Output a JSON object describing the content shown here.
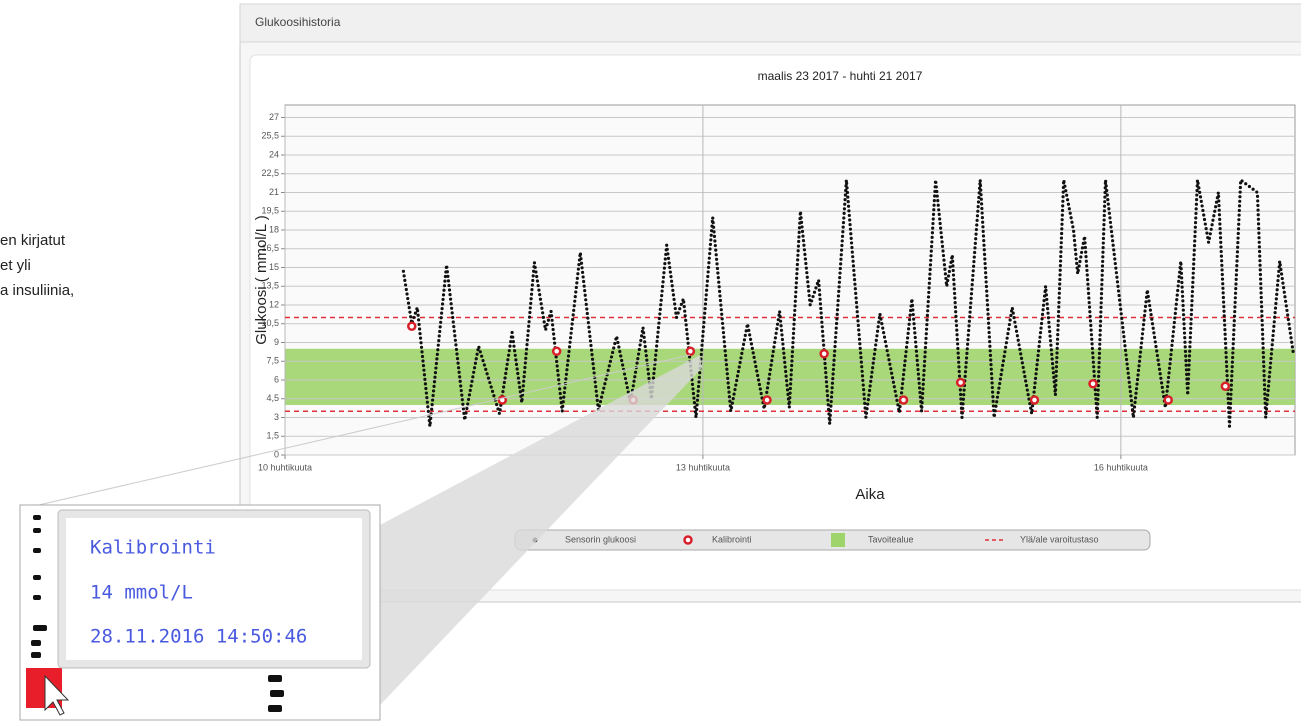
{
  "side_text": [
    "en kirjatut",
    "et yli",
    "a insuliinia,"
  ],
  "panel_title": "Glukoosihistoria",
  "chart_data": {
    "type": "scatter",
    "title": "maalis 23 2017 - huhti 21 2017",
    "x_label": "Aika",
    "y_label": "Glukoosi ( mmol/L )",
    "xlim": [
      10,
      17.25
    ],
    "xticks": [
      {
        "value": 10,
        "label": "10 huhtikuuta"
      },
      {
        "value": 13,
        "label": "13 huhtikuuta"
      },
      {
        "value": 16,
        "label": "16 huhtikuuta"
      }
    ],
    "ylim": [
      0,
      28
    ],
    "yticks": [
      0,
      {
        "value": 1.5,
        "label": "1,5"
      },
      3,
      {
        "value": 4.5,
        "label": "4,5"
      },
      6,
      {
        "value": 7.5,
        "label": "7,5"
      },
      9,
      {
        "value": 10.5,
        "label": "10,5"
      },
      12,
      {
        "value": 13.5,
        "label": "13,5"
      },
      15,
      {
        "value": 16.5,
        "label": "16,5"
      },
      18,
      {
        "value": 19.5,
        "label": "19,5"
      },
      21,
      {
        "value": 22.5,
        "label": "22,5"
      },
      24,
      {
        "value": 25.5,
        "label": "25,5"
      },
      27
    ],
    "grid": true,
    "legend": "bottom",
    "target_range": {
      "name": "Tavoitealue",
      "values": [
        4,
        8.5
      ],
      "color": "#9fd46a"
    },
    "warning_levels": {
      "name": "Ylä/ale varoitustaso",
      "values": [
        3.5,
        11
      ],
      "color": "#e0303a"
    },
    "series": [
      {
        "name": "Sensorin glukoosi",
        "color": "#111111",
        "x": [
          10.85,
          10.91,
          10.95,
          11.04,
          11.16,
          11.29,
          11.39,
          11.54,
          11.63,
          11.7,
          11.79,
          11.87,
          11.91,
          11.99,
          12.12,
          12.25,
          12.38,
          12.48,
          12.57,
          12.63,
          12.74,
          12.81,
          12.86,
          12.95,
          13.07,
          13.2,
          13.32,
          13.44,
          13.55,
          13.62,
          13.7,
          13.77,
          13.83,
          13.91,
          14.03,
          14.17,
          14.27,
          14.41,
          14.5,
          14.57,
          14.67,
          14.75,
          14.79,
          14.86,
          14.99,
          15.09,
          15.22,
          15.36,
          15.46,
          15.53,
          15.59,
          15.66,
          15.69,
          15.74,
          15.83,
          15.89,
          16.09,
          16.19,
          16.32,
          16.43,
          16.48,
          16.55,
          16.63,
          16.7,
          16.78,
          16.86,
          16.98,
          17.04,
          17.14,
          17.24
        ],
        "values": [
          14.7,
          10.5,
          11.8,
          2.3,
          15.2,
          2.8,
          8.7,
          3.3,
          9.8,
          4.2,
          15.4,
          10,
          11.5,
          3.5,
          16.2,
          3.6,
          9.5,
          4.2,
          10.2,
          4.5,
          16.8,
          11,
          12.5,
          3,
          19,
          3.5,
          10.5,
          3.7,
          11.5,
          3.8,
          19.5,
          12,
          14,
          2.5,
          22,
          3,
          11.3,
          3.4,
          12.5,
          3.5,
          22,
          13.5,
          16,
          3,
          22,
          3,
          11.8,
          3.3,
          13.5,
          4.8,
          22,
          18,
          14.5,
          17.5,
          3,
          22,
          3,
          13.2,
          3.8,
          15.5,
          4.8,
          22,
          17,
          21,
          2.3,
          22,
          21,
          3,
          15.5,
          8
        ]
      },
      {
        "name": "Kalibrointi",
        "color": "#d8202a",
        "x": [
          10.91,
          11.56,
          11.95,
          12.5,
          12.91,
          13.46,
          13.87,
          14.44,
          14.85,
          15.38,
          15.8,
          16.34,
          16.75
        ],
        "values": [
          10.3,
          4.4,
          8.3,
          4.4,
          8.3,
          4.4,
          8.1,
          4.4,
          5.8,
          4.4,
          5.7,
          4.4,
          5.5
        ]
      }
    ]
  },
  "tooltip": {
    "title": "Kalibrointi",
    "value": "14 mmol/L",
    "time": "28.11.2016 14:50:46"
  }
}
